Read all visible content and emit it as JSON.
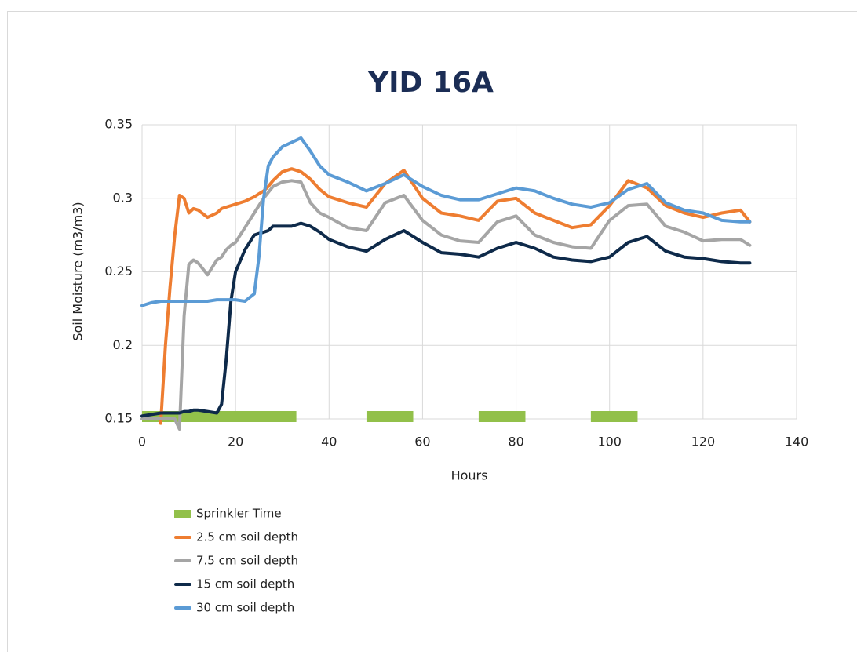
{
  "chart_data": {
    "type": "line",
    "title": "YID 16A",
    "x_label": "Hours",
    "y_label": "Soil Moisture (m3/m3)",
    "xlim": [
      0,
      140
    ],
    "xticks": [
      0,
      20,
      40,
      60,
      80,
      100,
      120,
      140
    ],
    "ylim": [
      0.15,
      0.35
    ],
    "yticks": [
      0.15,
      0.2,
      0.25,
      0.3,
      0.35
    ],
    "grid": true,
    "sprinkler": {
      "name": "Sprinkler Time",
      "color": "#92c04a",
      "intervals": [
        [
          0,
          33
        ],
        [
          48,
          58
        ],
        [
          72,
          82
        ],
        [
          96,
          106
        ]
      ]
    },
    "x": [
      0,
      2,
      4,
      5,
      6,
      7,
      8,
      9,
      10,
      11,
      12,
      14,
      16,
      17,
      18,
      19,
      20,
      22,
      24,
      25,
      26,
      27,
      28,
      30,
      32,
      34,
      36,
      38,
      40,
      44,
      48,
      52,
      56,
      60,
      64,
      68,
      72,
      76,
      80,
      84,
      88,
      92,
      96,
      100,
      104,
      108,
      112,
      116,
      120,
      124,
      128,
      130
    ],
    "series": [
      {
        "name": "2.5 cm soil depth",
        "color": "#ee7d31",
        "values": [
          null,
          null,
          0.147,
          0.2,
          0.24,
          0.275,
          0.302,
          0.3,
          0.29,
          0.293,
          0.292,
          0.287,
          0.29,
          0.293,
          0.294,
          0.295,
          0.296,
          0.298,
          0.301,
          0.303,
          0.305,
          0.308,
          0.312,
          0.318,
          0.32,
          0.318,
          0.313,
          0.306,
          0.301,
          0.297,
          0.294,
          0.31,
          0.319,
          0.3,
          0.29,
          0.288,
          0.285,
          0.298,
          0.3,
          0.29,
          0.285,
          0.28,
          0.282,
          0.295,
          0.312,
          0.307,
          0.295,
          0.29,
          0.287,
          0.29,
          0.292,
          0.284
        ]
      },
      {
        "name": "7.5 cm soil depth",
        "color": "#a5a5a5",
        "values": [
          0.15,
          0.15,
          0.15,
          0.15,
          0.15,
          0.15,
          0.143,
          0.22,
          0.255,
          0.258,
          0.256,
          0.248,
          0.258,
          0.26,
          0.265,
          0.268,
          0.27,
          0.28,
          0.29,
          0.295,
          0.3,
          0.304,
          0.308,
          0.311,
          0.312,
          0.311,
          0.297,
          0.29,
          0.287,
          0.28,
          0.278,
          0.297,
          0.302,
          0.285,
          0.275,
          0.271,
          0.27,
          0.284,
          0.288,
          0.275,
          0.27,
          0.267,
          0.266,
          0.285,
          0.295,
          0.296,
          0.281,
          0.277,
          0.271,
          0.272,
          0.272,
          0.268
        ]
      },
      {
        "name": "15 cm soil depth",
        "color": "#0e2a4a",
        "values": [
          0.152,
          0.153,
          0.154,
          0.154,
          0.154,
          0.154,
          0.154,
          0.155,
          0.155,
          0.156,
          0.156,
          0.155,
          0.154,
          0.16,
          0.19,
          0.23,
          0.25,
          0.265,
          0.275,
          0.276,
          0.277,
          0.278,
          0.281,
          0.281,
          0.281,
          0.283,
          0.281,
          0.277,
          0.272,
          0.267,
          0.264,
          0.272,
          0.278,
          0.27,
          0.263,
          0.262,
          0.26,
          0.266,
          0.27,
          0.266,
          0.26,
          0.258,
          0.257,
          0.26,
          0.27,
          0.274,
          0.264,
          0.26,
          0.259,
          0.257,
          0.256,
          0.256
        ]
      },
      {
        "name": "30 cm soil depth",
        "color": "#5b9bd5",
        "values": [
          0.227,
          0.229,
          0.23,
          0.23,
          0.23,
          0.23,
          0.23,
          0.23,
          0.23,
          0.23,
          0.23,
          0.23,
          0.231,
          0.231,
          0.231,
          0.231,
          0.231,
          0.23,
          0.235,
          0.26,
          0.3,
          0.322,
          0.328,
          0.335,
          0.338,
          0.341,
          0.332,
          0.322,
          0.316,
          0.311,
          0.305,
          0.31,
          0.316,
          0.308,
          0.302,
          0.299,
          0.299,
          0.303,
          0.307,
          0.305,
          0.3,
          0.296,
          0.294,
          0.297,
          0.306,
          0.31,
          0.297,
          0.292,
          0.29,
          0.285,
          0.284,
          0.284
        ]
      }
    ]
  }
}
